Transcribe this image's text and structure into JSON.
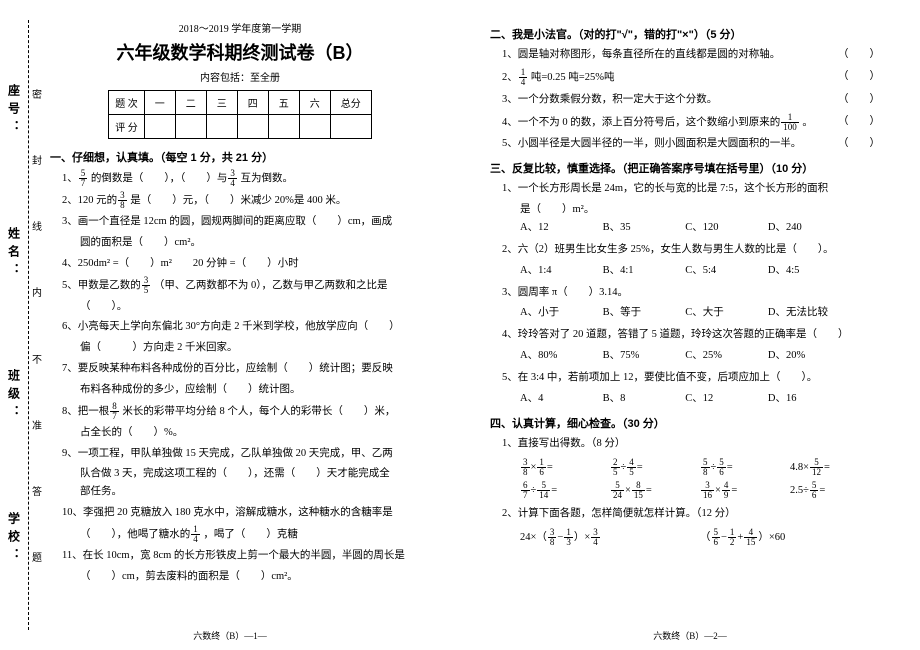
{
  "left": {
    "binding_labels": [
      "座号：",
      "姓名：",
      "班级：",
      "学校："
    ],
    "binding_marks": [
      "密",
      "封",
      "线",
      "内",
      "不",
      "准",
      "答",
      "题"
    ],
    "subtitle": "2018～2019 学年度第一学期",
    "title": "六年级数学科期终测试卷（B）",
    "scope": "内容包括：至全册",
    "score_headers": [
      "题 次",
      "一",
      "二",
      "三",
      "四",
      "五",
      "六",
      "总分"
    ],
    "score_row": "评 分",
    "section1": "一、仔细想，认真填。（每空 1 分，共 21 分）",
    "q1_a": "1、",
    "q1_b": "的倒数是（　　），（　　）与",
    "q1_c": "互为倒数。",
    "q2": "2、120 元的",
    "q2_b": "是（　　）元，（　　）米减少 20%是 400 米。",
    "q3": "3、画一个直径是 12cm 的圆，圆规两脚间的距离应取（　　）cm，画成",
    "q3_b": "圆的面积是（　　）cm²。",
    "q4": "4、250dm² =（　　）m²　　20 分钟 =（　　）小时",
    "q5": "5、甲数是乙数的",
    "q5_b": "（甲、乙两数都不为 0），乙数与甲乙两数和之比是",
    "q5_c": "（　　）。",
    "q6": "6、小亮每天上学向东偏北 30°方向走 2 千米到学校，他放学应向（　　）",
    "q6_b": "偏（　　　）方向走 2 千米回家。",
    "q7": "7、要反映某种布料各种成份的百分比，应绘制（　　）统计图；要反映",
    "q7_b": "布料各种成份的多少，应绘制（　　）统计图。",
    "q8": "8、把一根",
    "q8_b": "米长的彩带平均分给 8 个人，每个人的彩带长（　　）米，",
    "q8_c": "占全长的（　　）%。",
    "q9": "9、一项工程，甲队单独做 15 天完成，乙队单独做 20 天完成，甲、乙两",
    "q9_b": "队合做 3 天，完成这项工程的（　　），还需（　　）天才能完成全",
    "q9_c": "部任务。",
    "q10": "10、李强把 20 克糖放入 180 克水中，溶解成糖水，这种糖水的含糖率是",
    "q10_b": "（　　），他喝了糖水的",
    "q10_c": "，喝了（　　）克糖",
    "q11": "11、在长 10cm，宽 8cm 的长方形铁皮上剪一个最大的半圆，半圆的周长是",
    "q11_b": "（　　）cm，剪去废料的面积是（　　）cm²。",
    "footer": "六数终（B）—1—"
  },
  "right": {
    "section2": "二、我是小法官。（对的打\"√\"，错的打\"×\"）（5 分）",
    "j1": "1、圆是轴对称图形，每条直径所在的直线都是圆的对称轴。",
    "j2_a": "2、",
    "j2_b": "吨=0.25 吨=25%吨",
    "j3": "3、一个分数乘假分数，积一定大于这个分数。",
    "j4_a": "4、一个不为 0 的数，添上百分符号后，这个数缩小到原来的",
    "j4_b": "。",
    "j5": "5、小圆半径是大圆半径的一半，则小圆面积是大圆面积的一半。",
    "pp": "（　　）",
    "section3": "三、反复比较，慎重选择。（把正确答案序号填在括号里）（10 分）",
    "c1": "1、一个长方形周长是 24m，它的长与宽的比是 7:5，这个长方形的面积",
    "c1_b": "是（　　）m²。",
    "c1_opts": [
      "A、12",
      "B、35",
      "C、120",
      "D、240"
    ],
    "c2": "2、六（2）班男生比女生多 25%，女生人数与男生人数的比是（　　）。",
    "c2_opts": [
      "A、1:4",
      "B、4:1",
      "C、5:4",
      "D、4:5"
    ],
    "c3": "3、圆周率 π（　　）3.14。",
    "c3_opts": [
      "A、小于",
      "B、等于",
      "C、大于",
      "D、无法比较"
    ],
    "c4": "4、玲玲答对了 20 道题，答错了 5 道题，玲玲这次答题的正确率是（　　）",
    "c4_opts": [
      "A、80%",
      "B、75%",
      "C、25%",
      "D、20%"
    ],
    "c5": "5、在 3:4 中，若前项加上 12，要使比值不变，后项应加上（　　）。",
    "c5_opts": [
      "A、4",
      "B、8",
      "C、12",
      "D、16"
    ],
    "section4": "四、认真计算，细心检查。（30 分）",
    "calc1": "1、直接写出得数。（8 分）",
    "calc2": "2、计算下面各题，怎样简便就怎样计算。（12 分）",
    "footer": "六数终（B）—2—"
  }
}
